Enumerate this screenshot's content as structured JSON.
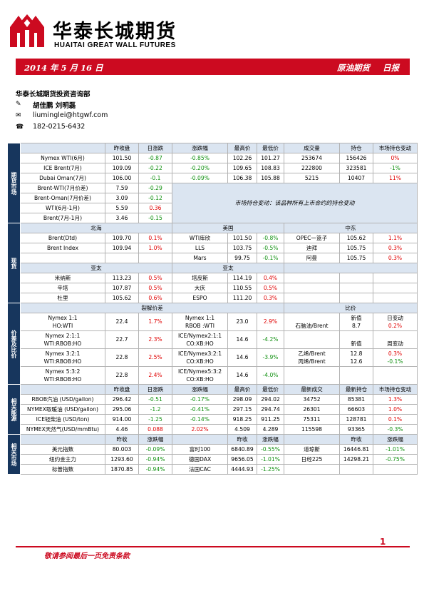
{
  "header": {
    "company_cn": "华泰长城期货",
    "company_en": "HUAITAI GREAT WALL FUTURES"
  },
  "banner": {
    "date": "2014 年 5 月 16 日",
    "report_title": "原油期货",
    "report_type": "日报"
  },
  "contact": {
    "dept": "华泰长城期货投资咨询部",
    "authors": "胡佳鹏  刘明磊",
    "email": "liuminglei@htgwf.com",
    "phone": "182-0215-6432"
  },
  "sections": {
    "futures": "期货市场",
    "spot": "现货",
    "spread": "价差及比价",
    "related": "相关能源",
    "related_markets": "相关市场"
  },
  "futures": {
    "headers": [
      "昨收盘",
      "日涨跌",
      "涨跌幅",
      "最高价",
      "最低价",
      "成交量",
      "持仓",
      "市场持仓变动"
    ],
    "rows": [
      [
        "Nymex WTI(6月)",
        "101.50",
        "-0.87",
        "-0.85%",
        "102.26",
        "101.27",
        "253674",
        "156426",
        "0%"
      ],
      [
        "ICE Brent(7月)",
        "109.09",
        "-0.22",
        "-0.20%",
        "109.65",
        "108.83",
        "222800",
        "323581",
        "-1%"
      ],
      [
        "Dubai Oman(7月)",
        "106.00",
        "-0.1",
        "-0.09%",
        "106.38",
        "105.88",
        "5215",
        "10407",
        "11%"
      ]
    ],
    "spread_rows": [
      [
        "Brent-WTI(7月价差)",
        "7.59",
        "-0.29"
      ],
      [
        "Brent-Oman(7月价差)",
        "3.09",
        "-0.12"
      ],
      [
        "WTI(6月-1月)",
        "5.59",
        "0.36"
      ],
      [
        "Brent(7月-1月)",
        "3.46",
        "-0.15"
      ]
    ],
    "note": "市场持仓变动：该品种所有上市合约的持仓变动"
  },
  "spot": {
    "regions": [
      "北海",
      "美国",
      "中东"
    ],
    "rows": [
      [
        "Brent(Dtd)",
        "109.70",
        "0.1%",
        "WTI库欣",
        "101.50",
        "-0.8%",
        "OPEC一篮子",
        "105.62",
        "1.1%"
      ],
      [
        "Brent Index",
        "109.94",
        "1.0%",
        "LLS",
        "103.75",
        "-0.5%",
        "迪拜",
        "105.75",
        "0.3%"
      ],
      [
        "",
        "",
        "",
        "Mars",
        "99.75",
        "-0.1%",
        "阿曼",
        "105.75",
        "0.3%"
      ]
    ],
    "regions2": [
      "亚太",
      "亚太"
    ],
    "rows2": [
      [
        "米纳斯",
        "113.23",
        "0.5%",
        "塔皮斯",
        "114.19",
        "0.4%"
      ],
      [
        "辛塔",
        "107.87",
        "0.5%",
        "大庆",
        "110.55",
        "0.5%"
      ],
      [
        "杜里",
        "105.62",
        "0.6%",
        "ESPO",
        "111.20",
        "0.3%"
      ]
    ]
  },
  "crack": {
    "title": "裂解价差",
    "ratio_title": "比价",
    "rows": [
      {
        "a1": "Nymex 1:1",
        "a2": "HO:WTI",
        "av": "22.4",
        "ap": "1.7%",
        "b1": "Nymex 1:1",
        "b2": "RBOB :WTI",
        "bv": "23.0",
        "bp": "2.9%"
      },
      {
        "a1": "Nymex 2:1:1",
        "a2": "WTI:RBOB:HO",
        "av": "22.7",
        "ap": "2.3%",
        "b1": "ICE/Nymex2:1:1",
        "b2": "CO:XB:HO",
        "bv": "14.6",
        "bp": "-4.2%"
      },
      {
        "a1": "Nymex 3:2:1",
        "a2": "WTI:RBOB:HO",
        "av": "22.8",
        "ap": "2.5%",
        "b1": "ICE/Nymex3:2:1",
        "b2": "CO:XB:HO",
        "bv": "14.6",
        "bp": "-3.9%"
      },
      {
        "a1": "Nymex 5:3:2",
        "a2": "WTI:RBOB:HO",
        "av": "22.8",
        "ap": "2.4%",
        "b1": "ICE/Nymex5:3:2",
        "b2": "CO:XB:HO",
        "bv": "14.6",
        "bp": "-4.0%"
      }
    ],
    "ratio": {
      "h1": "新值",
      "h2": "日变动",
      "r1": [
        "石脑油/Brent",
        "8.7",
        "0.2%"
      ],
      "h3": "新值",
      "h4": "周变动",
      "r2": [
        "乙烯/Brent",
        "12.8",
        "0.3%"
      ],
      "r3": [
        "丙烯/Brent",
        "12.6",
        "-0.1%"
      ]
    }
  },
  "related": {
    "headers": [
      "昨收盘",
      "日涨跌",
      "涨跌幅",
      "最高价",
      "最低价",
      "最新成交",
      "最新持仓",
      "市场持仓变动"
    ],
    "rows": [
      [
        "RBOB汽油 (USD/gallon)",
        "296.42",
        "-0.51",
        "-0.17%",
        "298.09",
        "294.02",
        "34752",
        "85381",
        "1.3%"
      ],
      [
        "NYMEX取暖油 (USD/gallon)",
        "295.06",
        "-1.2",
        "-0.41%",
        "297.15",
        "294.74",
        "26301",
        "66603",
        "1.0%"
      ],
      [
        "ICE轻柴油 (USD/ton)",
        "914.00",
        "-1.25",
        "-0.14%",
        "918.25",
        "911.25",
        "75311",
        "128781",
        "0.1%"
      ],
      [
        "NYMEX天然气(USD/mmBtu)",
        "4.46",
        "0.088",
        "2.02%",
        "4.509",
        "4.289",
        "115598",
        "93365",
        "-0.3%"
      ]
    ]
  },
  "markets": {
    "headers": [
      "昨收",
      "涨跌幅",
      "昨收",
      "涨跌幅",
      "昨收",
      "涨跌幅"
    ],
    "rows": [
      [
        "美元指数",
        "80.003",
        "-0.09%",
        "富时100",
        "6840.89",
        "-0.55%",
        "道琼斯",
        "16446.81",
        "-1.01%"
      ],
      [
        "纽约金主力",
        "1293.60",
        "-0.94%",
        "德国DAX",
        "9656.05",
        "-1.01%",
        "日经225",
        "14298.21",
        "-0.75%"
      ],
      [
        "标普指数",
        "1870.85",
        "-0.94%",
        "法国CAC",
        "4444.93",
        "-1.25%",
        "",
        "",
        ""
      ]
    ]
  },
  "footer": {
    "page": "1",
    "disclaimer": "敬请参阅最后一页免责条款"
  },
  "colors": {
    "brand_red": "#cc0a20",
    "navy": "#17365d",
    "header_fill": "#dbe5f1",
    "up": "#e00000",
    "down": "#109010"
  }
}
